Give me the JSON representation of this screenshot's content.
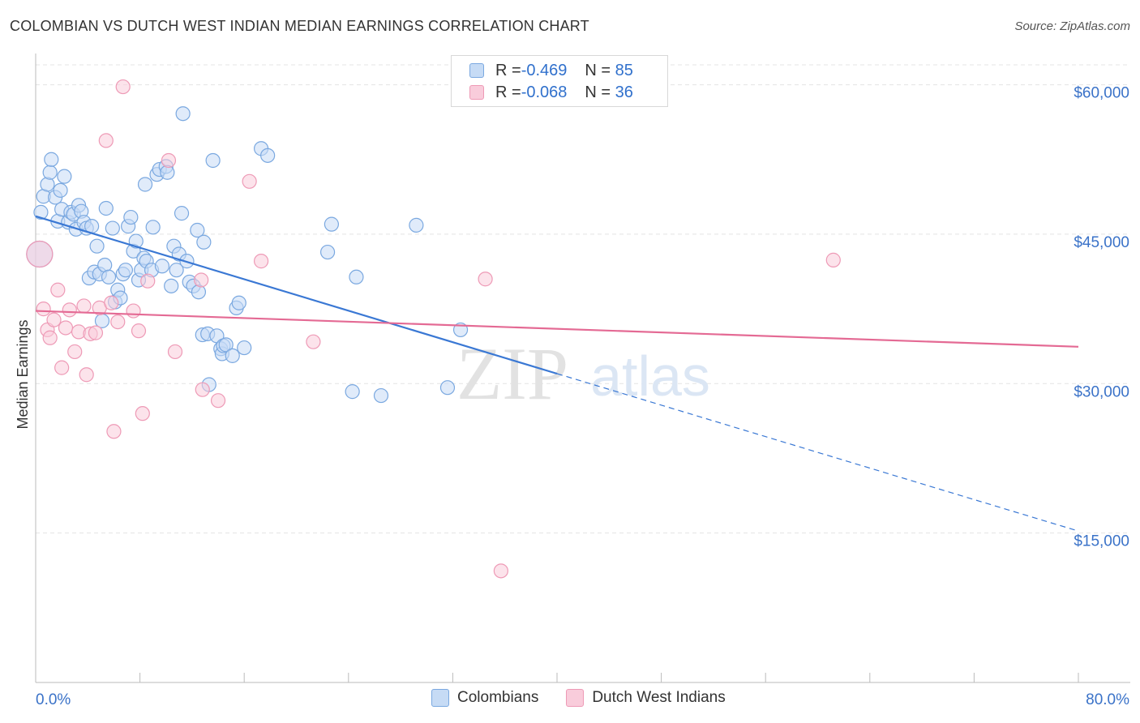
{
  "title": "COLOMBIAN VS DUTCH WEST INDIAN MEDIAN EARNINGS CORRELATION CHART",
  "source": "Source: ZipAtlas.com",
  "watermark": {
    "zip": "ZIP",
    "atlas": "atlas"
  },
  "colors": {
    "blue": "#3a78d4",
    "blue_fill": "#c6dbf5",
    "blue_stroke": "#7aa8e0",
    "pink": "#e46a94",
    "pink_fill": "#f9ccdb",
    "pink_stroke": "#ee9ab6",
    "tick_text": "#3a72c8",
    "grid": "#e4e4e4"
  },
  "legend": {
    "rows": [
      {
        "r_label": "R = ",
        "r_value": "-0.469",
        "n_label": "N = ",
        "n_value": "85"
      },
      {
        "r_label": "R = ",
        "r_value": "-0.068",
        "n_label": "N = ",
        "n_value": "36"
      }
    ]
  },
  "chart_data": {
    "type": "scatter",
    "title": "COLOMBIAN VS DUTCH WEST INDIAN MEDIAN EARNINGS CORRELATION CHART",
    "xlabel": "",
    "ylabel": "Median Earnings",
    "xlim": [
      0,
      80
    ],
    "ylim": [
      0,
      62000
    ],
    "x_tick_labels": [
      "0.0%",
      "80.0%"
    ],
    "y_ticks": [
      15000,
      30000,
      45000,
      60000
    ],
    "y_tick_labels": [
      "$15,000",
      "$30,000",
      "$45,000",
      "$60,000"
    ],
    "grid": true,
    "legend_position": "bottom",
    "series": [
      {
        "name": "Colombians",
        "color_key": "blue",
        "r": -0.469,
        "n": 85,
        "trend": {
          "x": [
            0,
            40
          ],
          "y": [
            46800,
            31000
          ]
        },
        "trend_extension": {
          "x": [
            40,
            80
          ],
          "y": [
            31000,
            15200
          ]
        },
        "points": [
          {
            "x": 0.3,
            "y": 43000,
            "big": true
          },
          {
            "x": 0.4,
            "y": 47200
          },
          {
            "x": 0.6,
            "y": 48800
          },
          {
            "x": 0.9,
            "y": 50000
          },
          {
            "x": 1.1,
            "y": 51200
          },
          {
            "x": 1.2,
            "y": 52500
          },
          {
            "x": 1.5,
            "y": 48700
          },
          {
            "x": 1.7,
            "y": 46300
          },
          {
            "x": 1.9,
            "y": 49400
          },
          {
            "x": 2.0,
            "y": 47500
          },
          {
            "x": 2.2,
            "y": 50800
          },
          {
            "x": 2.5,
            "y": 46200
          },
          {
            "x": 2.7,
            "y": 47200
          },
          {
            "x": 2.9,
            "y": 47000
          },
          {
            "x": 3.1,
            "y": 45500
          },
          {
            "x": 3.3,
            "y": 47900
          },
          {
            "x": 3.5,
            "y": 47300
          },
          {
            "x": 3.7,
            "y": 46200
          },
          {
            "x": 3.9,
            "y": 45600
          },
          {
            "x": 4.1,
            "y": 40600
          },
          {
            "x": 4.3,
            "y": 45800
          },
          {
            "x": 4.5,
            "y": 41200
          },
          {
            "x": 4.7,
            "y": 43800
          },
          {
            "x": 4.9,
            "y": 41000
          },
          {
            "x": 5.1,
            "y": 36300
          },
          {
            "x": 5.3,
            "y": 41900
          },
          {
            "x": 5.4,
            "y": 47600
          },
          {
            "x": 5.6,
            "y": 40700
          },
          {
            "x": 5.9,
            "y": 45600
          },
          {
            "x": 6.1,
            "y": 38200
          },
          {
            "x": 6.3,
            "y": 39400
          },
          {
            "x": 6.5,
            "y": 38600
          },
          {
            "x": 6.7,
            "y": 41000
          },
          {
            "x": 6.9,
            "y": 41400
          },
          {
            "x": 7.1,
            "y": 45800
          },
          {
            "x": 7.3,
            "y": 46700
          },
          {
            "x": 7.5,
            "y": 43300
          },
          {
            "x": 7.7,
            "y": 44300
          },
          {
            "x": 7.9,
            "y": 40400
          },
          {
            "x": 8.1,
            "y": 41400
          },
          {
            "x": 8.3,
            "y": 42600
          },
          {
            "x": 8.4,
            "y": 50000
          },
          {
            "x": 8.5,
            "y": 42300
          },
          {
            "x": 8.9,
            "y": 41400
          },
          {
            "x": 9.0,
            "y": 45700
          },
          {
            "x": 9.3,
            "y": 51000
          },
          {
            "x": 9.5,
            "y": 51500
          },
          {
            "x": 9.7,
            "y": 41800
          },
          {
            "x": 10.0,
            "y": 51800
          },
          {
            "x": 10.1,
            "y": 51200
          },
          {
            "x": 10.4,
            "y": 39800
          },
          {
            "x": 10.6,
            "y": 43800
          },
          {
            "x": 10.8,
            "y": 41400
          },
          {
            "x": 11.0,
            "y": 43000
          },
          {
            "x": 11.2,
            "y": 47100
          },
          {
            "x": 11.3,
            "y": 57100
          },
          {
            "x": 11.6,
            "y": 42300
          },
          {
            "x": 11.8,
            "y": 40200
          },
          {
            "x": 12.1,
            "y": 39800
          },
          {
            "x": 12.4,
            "y": 45400
          },
          {
            "x": 12.5,
            "y": 39200
          },
          {
            "x": 12.8,
            "y": 34900
          },
          {
            "x": 12.9,
            "y": 44200
          },
          {
            "x": 13.2,
            "y": 35000
          },
          {
            "x": 13.3,
            "y": 29900
          },
          {
            "x": 13.6,
            "y": 52400
          },
          {
            "x": 13.9,
            "y": 34800
          },
          {
            "x": 14.2,
            "y": 33500
          },
          {
            "x": 14.3,
            "y": 33000
          },
          {
            "x": 14.4,
            "y": 33800
          },
          {
            "x": 14.6,
            "y": 33900
          },
          {
            "x": 15.1,
            "y": 32800
          },
          {
            "x": 15.4,
            "y": 37600
          },
          {
            "x": 15.6,
            "y": 38100
          },
          {
            "x": 16.0,
            "y": 33600
          },
          {
            "x": 17.3,
            "y": 53600
          },
          {
            "x": 17.8,
            "y": 52900
          },
          {
            "x": 22.4,
            "y": 43200
          },
          {
            "x": 22.7,
            "y": 46000
          },
          {
            "x": 24.6,
            "y": 40700
          },
          {
            "x": 24.3,
            "y": 29200
          },
          {
            "x": 26.5,
            "y": 28800
          },
          {
            "x": 29.2,
            "y": 45900
          },
          {
            "x": 31.6,
            "y": 29600
          },
          {
            "x": 32.6,
            "y": 35400
          }
        ]
      },
      {
        "name": "Dutch West Indians",
        "color_key": "pink",
        "r": -0.068,
        "n": 36,
        "trend": {
          "x": [
            0,
            80
          ],
          "y": [
            37300,
            33700
          ]
        },
        "points": [
          {
            "x": 0.3,
            "y": 43000,
            "big": true
          },
          {
            "x": 0.6,
            "y": 37500
          },
          {
            "x": 0.9,
            "y": 35400
          },
          {
            "x": 1.1,
            "y": 34600
          },
          {
            "x": 1.4,
            "y": 36400
          },
          {
            "x": 1.7,
            "y": 39400
          },
          {
            "x": 2.0,
            "y": 31600
          },
          {
            "x": 2.3,
            "y": 35600
          },
          {
            "x": 2.6,
            "y": 37400
          },
          {
            "x": 3.0,
            "y": 33200
          },
          {
            "x": 3.3,
            "y": 35200
          },
          {
            "x": 3.7,
            "y": 37800
          },
          {
            "x": 3.9,
            "y": 30900
          },
          {
            "x": 4.2,
            "y": 35000
          },
          {
            "x": 4.6,
            "y": 35100
          },
          {
            "x": 4.9,
            "y": 37600
          },
          {
            "x": 5.4,
            "y": 54400
          },
          {
            "x": 5.8,
            "y": 38100
          },
          {
            "x": 6.0,
            "y": 25200
          },
          {
            "x": 6.3,
            "y": 36200
          },
          {
            "x": 6.7,
            "y": 59800
          },
          {
            "x": 7.5,
            "y": 37300
          },
          {
            "x": 7.9,
            "y": 35300
          },
          {
            "x": 8.2,
            "y": 27000
          },
          {
            "x": 8.6,
            "y": 40300
          },
          {
            "x": 10.2,
            "y": 52400
          },
          {
            "x": 10.7,
            "y": 33200
          },
          {
            "x": 12.7,
            "y": 40400
          },
          {
            "x": 12.8,
            "y": 29400
          },
          {
            "x": 14.0,
            "y": 28300
          },
          {
            "x": 16.4,
            "y": 50300
          },
          {
            "x": 17.3,
            "y": 42300
          },
          {
            "x": 21.3,
            "y": 34200
          },
          {
            "x": 34.5,
            "y": 40500
          },
          {
            "x": 35.7,
            "y": 11200
          },
          {
            "x": 61.2,
            "y": 42400
          }
        ]
      }
    ]
  },
  "bottom_legend": [
    "Colombians",
    "Dutch West Indians"
  ]
}
